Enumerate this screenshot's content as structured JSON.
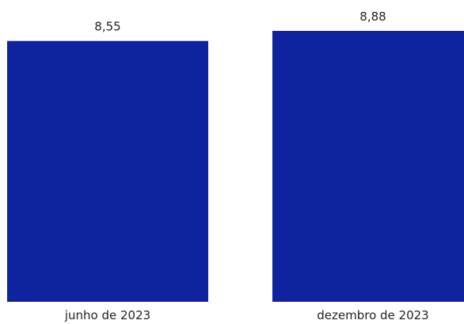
{
  "chart_data": {
    "type": "bar",
    "categories": [
      "junho de 2023",
      "dezembro de 2023"
    ],
    "values": [
      8.55,
      8.88
    ],
    "data_labels": [
      "8,55",
      "8,88"
    ],
    "title": "",
    "xlabel": "",
    "ylabel": "",
    "ylim": [
      0,
      8.88
    ],
    "grid": false,
    "legend": "none",
    "bar_color": "#10239E"
  }
}
